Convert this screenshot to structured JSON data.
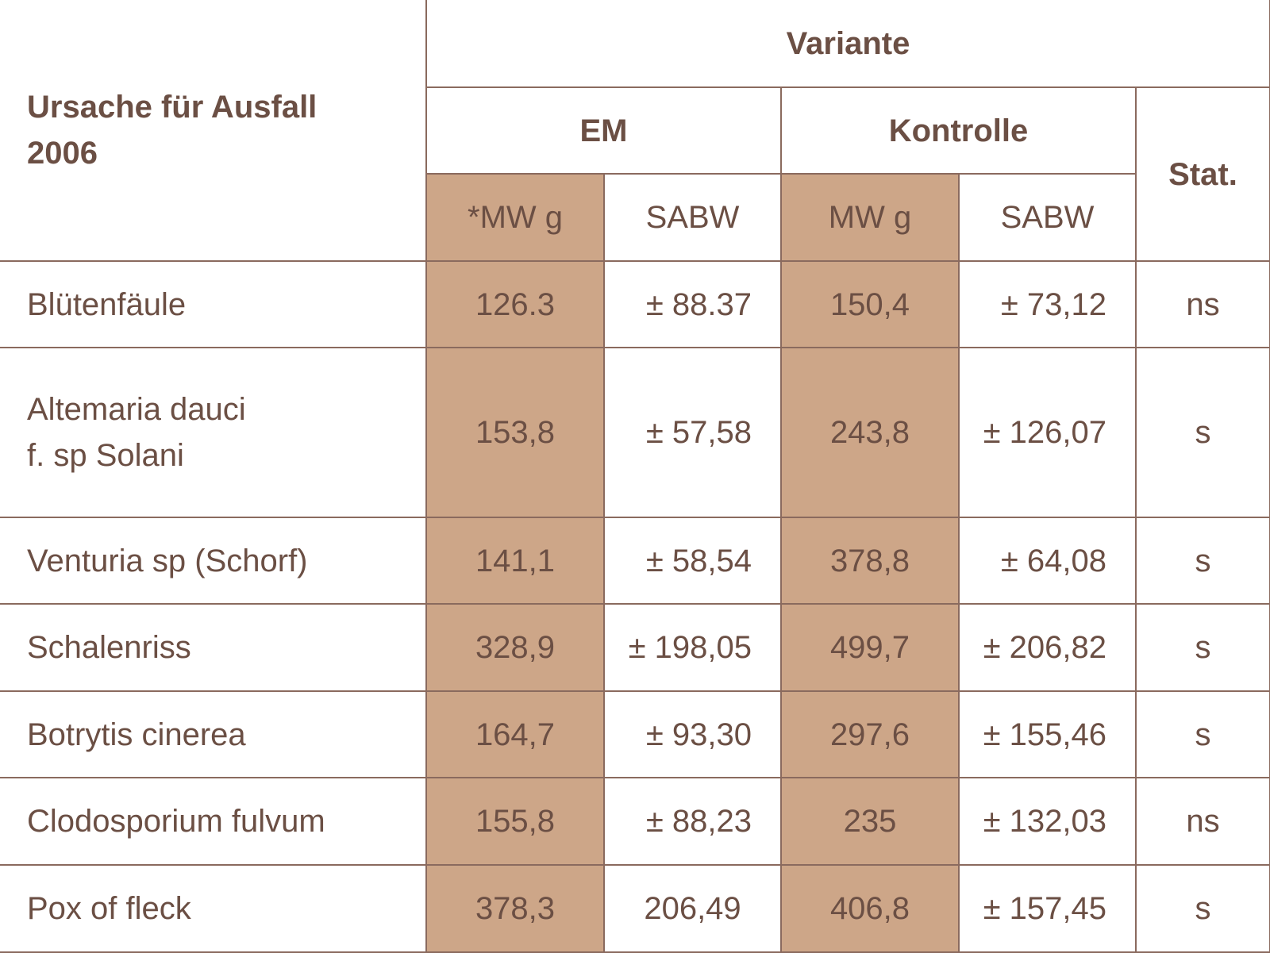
{
  "header": {
    "row_label_title": "Ursache für Ausfall 2006",
    "group_title": "Variante",
    "em_label": "EM",
    "kontrolle_label": "Kontrolle",
    "stat_label": "Stat.",
    "em_mw_label": "*MW g",
    "em_sabw_label": "SABW",
    "k_mw_label": "MW g",
    "k_sabw_label": "SABW"
  },
  "colors": {
    "shade": "#cda688",
    "text": "#6b4f44",
    "rule": "#8a6a5e"
  },
  "rows": [
    {
      "cause": "Blütenfäule",
      "em_mw": "126.3",
      "em_sabw": "± 88.37",
      "k_mw": "150,4",
      "k_sabw": "± 73,12",
      "stat": "ns"
    },
    {
      "cause": "Altemaria dauci\nf. sp Solani",
      "em_mw": "153,8",
      "em_sabw": "± 57,58",
      "k_mw": "243,8",
      "k_sabw": "± 126,07",
      "stat": "s"
    },
    {
      "cause": "Venturia sp (Schorf)",
      "em_mw": "141,1",
      "em_sabw": "± 58,54",
      "k_mw": "378,8",
      "k_sabw": "± 64,08",
      "stat": "s"
    },
    {
      "cause": "Schalenriss",
      "em_mw": "328,9",
      "em_sabw": "± 198,05",
      "k_mw": "499,7",
      "k_sabw": "± 206,82",
      "stat": "s"
    },
    {
      "cause": "Botrytis cinerea",
      "em_mw": "164,7",
      "em_sabw": "± 93,30",
      "k_mw": "297,6",
      "k_sabw": "± 155,46",
      "stat": "s"
    },
    {
      "cause": "Clodosporium fulvum",
      "em_mw": "155,8",
      "em_sabw": "± 88,23",
      "k_mw": "235",
      "k_sabw": "± 132,03",
      "stat": "ns"
    },
    {
      "cause": "Pox of fleck",
      "em_mw": "378,3",
      "em_sabw": "206,49",
      "k_mw": "406,8",
      "k_sabw": "± 157,45",
      "stat": "s"
    }
  ]
}
